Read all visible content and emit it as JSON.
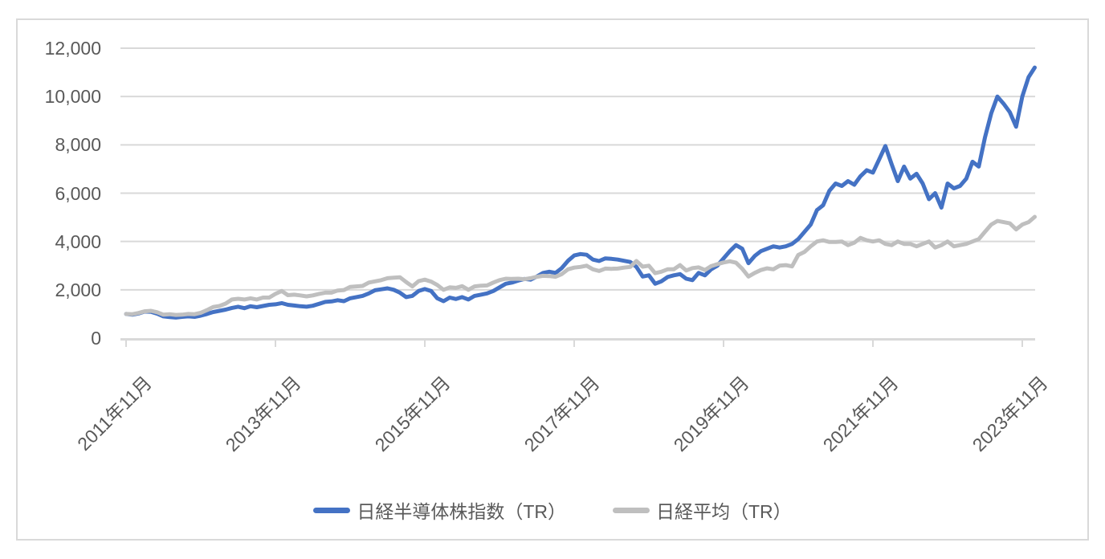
{
  "chart_data": {
    "type": "line",
    "title": "",
    "xlabel": "",
    "ylabel": "",
    "x_unit": "month",
    "x_start": "2011年11月",
    "x_end": "2024年1月",
    "points_total": 147,
    "months_per_tick": 24,
    "x_tick_labels": [
      "2011年11月",
      "2013年11月",
      "2015年11月",
      "2017年11月",
      "2019年11月",
      "2021年11月",
      "2023年11月"
    ],
    "ylim": [
      0,
      12000
    ],
    "y_tick_step": 2000,
    "y_tick_labels": [
      "0",
      "2,000",
      "4,000",
      "6,000",
      "8,000",
      "10,000",
      "12,000"
    ],
    "grid": "horizontal",
    "legend_position": "bottom",
    "gridline_color": "#D9D9D9",
    "axis_color": "#D9D9D9",
    "label_color": "#595959",
    "series": [
      {
        "name": "日経半導体株指数（TR）",
        "color": "#4472C4",
        "values": [
          1000,
          970,
          1020,
          1100,
          1090,
          1010,
          900,
          870,
          850,
          880,
          900,
          880,
          930,
          1000,
          1080,
          1130,
          1180,
          1250,
          1300,
          1240,
          1320,
          1280,
          1330,
          1380,
          1400,
          1450,
          1380,
          1350,
          1320,
          1300,
          1340,
          1420,
          1500,
          1520,
          1570,
          1530,
          1650,
          1700,
          1750,
          1850,
          1980,
          2020,
          2060,
          2000,
          1880,
          1700,
          1750,
          1950,
          2030,
          1950,
          1650,
          1530,
          1680,
          1620,
          1700,
          1600,
          1750,
          1800,
          1850,
          1950,
          2100,
          2250,
          2300,
          2380,
          2450,
          2420,
          2550,
          2700,
          2750,
          2700,
          2900,
          3200,
          3420,
          3480,
          3450,
          3250,
          3190,
          3300,
          3280,
          3250,
          3200,
          3150,
          2950,
          2550,
          2600,
          2250,
          2350,
          2530,
          2600,
          2650,
          2460,
          2400,
          2700,
          2600,
          2850,
          3000,
          3300,
          3600,
          3850,
          3700,
          3100,
          3400,
          3600,
          3700,
          3800,
          3750,
          3800,
          3900,
          4100,
          4400,
          4700,
          5300,
          5500,
          6100,
          6400,
          6300,
          6500,
          6350,
          6700,
          6950,
          6850,
          7400,
          7950,
          7200,
          6500,
          7100,
          6600,
          6800,
          6400,
          5750,
          6000,
          5400,
          6400,
          6200,
          6300,
          6600,
          7300,
          7100,
          8300,
          9300,
          10000,
          9700,
          9350,
          8750,
          10000,
          10800,
          11200
        ]
      },
      {
        "name": "日経平均（TR）",
        "color": "#BFBFBF",
        "values": [
          1000,
          990,
          1040,
          1110,
          1130,
          1070,
          970,
          990,
          960,
          970,
          1000,
          990,
          1050,
          1160,
          1290,
          1330,
          1430,
          1600,
          1630,
          1600,
          1650,
          1600,
          1680,
          1680,
          1830,
          1950,
          1780,
          1800,
          1770,
          1730,
          1770,
          1830,
          1880,
          1880,
          1970,
          1990,
          2120,
          2140,
          2160,
          2300,
          2350,
          2400,
          2480,
          2500,
          2520,
          2320,
          2140,
          2360,
          2420,
          2340,
          2200,
          2000,
          2100,
          2080,
          2150,
          2000,
          2140,
          2170,
          2180,
          2300,
          2400,
          2460,
          2450,
          2460,
          2440,
          2480,
          2540,
          2580,
          2570,
          2540,
          2650,
          2850,
          2920,
          2950,
          3000,
          2850,
          2780,
          2880,
          2870,
          2880,
          2920,
          2950,
          3190,
          2960,
          3000,
          2690,
          2750,
          2850,
          2850,
          3020,
          2800,
          2900,
          2930,
          2820,
          2980,
          3060,
          3130,
          3180,
          3120,
          2870,
          2550,
          2700,
          2820,
          2890,
          2850,
          3000,
          3020,
          2970,
          3440,
          3570,
          3800,
          4000,
          4050,
          3980,
          3980,
          4000,
          3850,
          3950,
          4150,
          4050,
          4000,
          4050,
          3900,
          3850,
          4000,
          3900,
          3900,
          3800,
          3900,
          4000,
          3750,
          3850,
          4000,
          3800,
          3850,
          3900,
          4000,
          4100,
          4400,
          4700,
          4850,
          4800,
          4750,
          4500,
          4700,
          4800,
          5020
        ]
      }
    ]
  }
}
